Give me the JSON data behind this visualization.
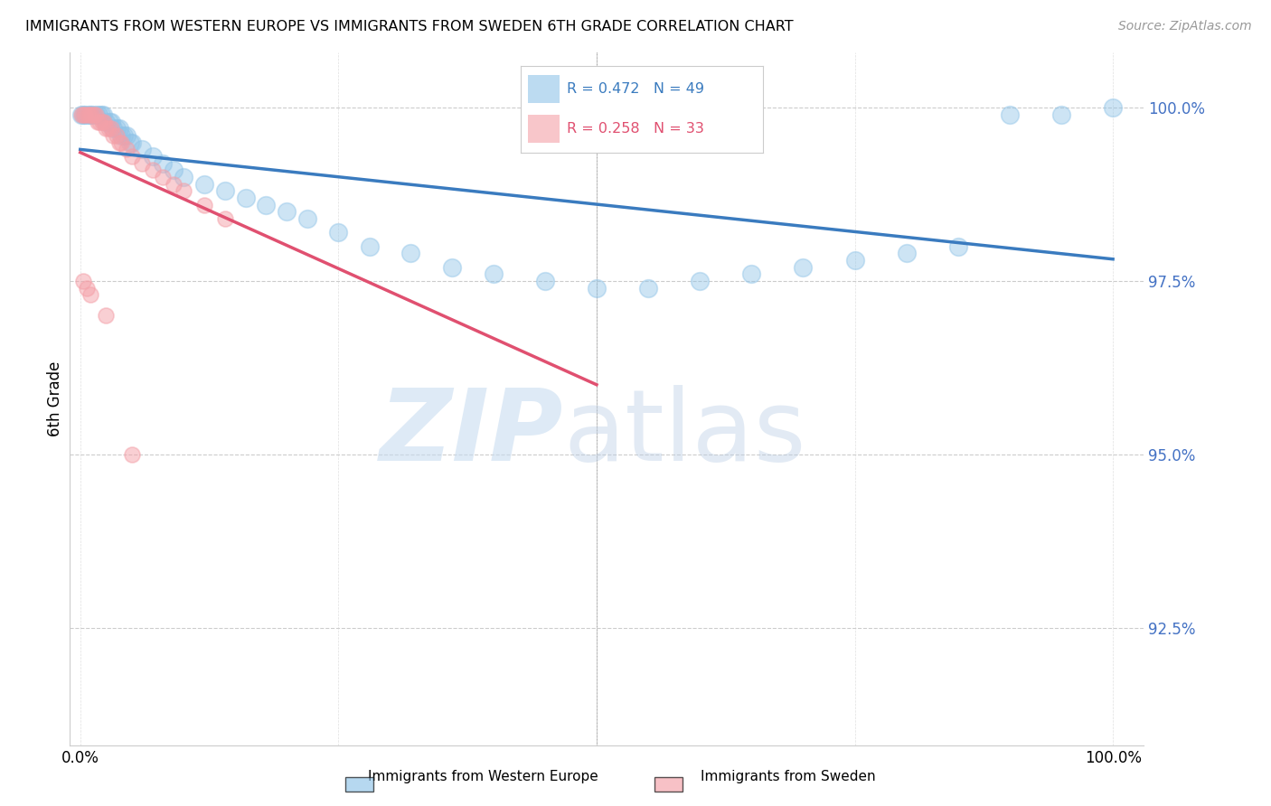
{
  "title": "IMMIGRANTS FROM WESTERN EUROPE VS IMMIGRANTS FROM SWEDEN 6TH GRADE CORRELATION CHART",
  "source": "Source: ZipAtlas.com",
  "ylabel": "6th Grade",
  "ytick_labels": [
    "100.0%",
    "97.5%",
    "95.0%",
    "92.5%"
  ],
  "ytick_values": [
    1.0,
    0.975,
    0.95,
    0.925
  ],
  "xlim": [
    -0.01,
    1.03
  ],
  "ylim": [
    0.908,
    1.008
  ],
  "legend_blue_R": "R = 0.472",
  "legend_blue_N": "N = 49",
  "legend_pink_R": "R = 0.258",
  "legend_pink_N": "N = 33",
  "legend_label_blue": "Immigrants from Western Europe",
  "legend_label_pink": "Immigrants from Sweden",
  "blue_color": "#90c4e8",
  "pink_color": "#f4a0a8",
  "trendline_blue_color": "#3a7bbf",
  "trendline_pink_color": "#e05070",
  "blue_scatter_x": [
    0.001,
    0.003,
    0.005,
    0.008,
    0.01,
    0.012,
    0.015,
    0.018,
    0.02,
    0.022,
    0.025,
    0.028,
    0.03,
    0.032,
    0.035,
    0.038,
    0.04,
    0.042,
    0.045,
    0.048,
    0.05,
    0.06,
    0.07,
    0.08,
    0.09,
    0.1,
    0.12,
    0.14,
    0.16,
    0.18,
    0.2,
    0.22,
    0.25,
    0.28,
    0.32,
    0.36,
    0.4,
    0.45,
    0.5,
    0.55,
    0.6,
    0.65,
    0.7,
    0.75,
    0.8,
    0.85,
    0.9,
    0.95,
    1.0
  ],
  "blue_scatter_y": [
    0.999,
    0.999,
    0.999,
    0.999,
    0.999,
    0.999,
    0.999,
    0.999,
    0.999,
    0.999,
    0.998,
    0.998,
    0.998,
    0.997,
    0.997,
    0.997,
    0.996,
    0.996,
    0.996,
    0.995,
    0.995,
    0.994,
    0.993,
    0.992,
    0.991,
    0.99,
    0.989,
    0.988,
    0.987,
    0.986,
    0.985,
    0.984,
    0.982,
    0.98,
    0.979,
    0.977,
    0.976,
    0.975,
    0.974,
    0.974,
    0.975,
    0.976,
    0.977,
    0.978,
    0.979,
    0.98,
    0.999,
    0.999,
    1.0
  ],
  "pink_scatter_x": [
    0.001,
    0.003,
    0.005,
    0.007,
    0.009,
    0.011,
    0.013,
    0.015,
    0.017,
    0.019,
    0.021,
    0.023,
    0.025,
    0.027,
    0.03,
    0.032,
    0.035,
    0.038,
    0.04,
    0.045,
    0.05,
    0.06,
    0.07,
    0.08,
    0.09,
    0.1,
    0.12,
    0.14,
    0.003,
    0.006,
    0.01,
    0.025,
    0.05
  ],
  "pink_scatter_y": [
    0.999,
    0.999,
    0.999,
    0.999,
    0.999,
    0.999,
    0.999,
    0.999,
    0.998,
    0.998,
    0.998,
    0.998,
    0.997,
    0.997,
    0.997,
    0.996,
    0.996,
    0.995,
    0.995,
    0.994,
    0.993,
    0.992,
    0.991,
    0.99,
    0.989,
    0.988,
    0.986,
    0.984,
    0.975,
    0.974,
    0.973,
    0.97,
    0.95
  ]
}
